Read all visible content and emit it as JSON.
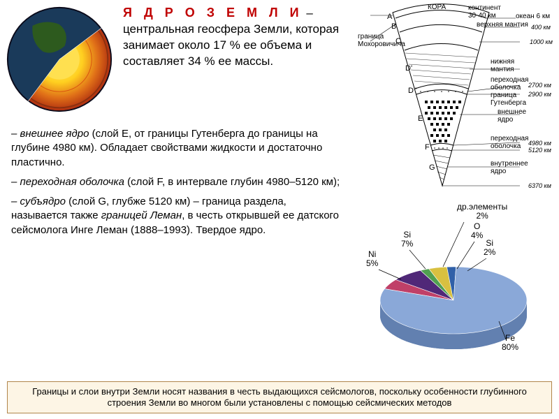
{
  "colors": {
    "title": "#c00000",
    "footer_bg": "#fdf5e5",
    "footer_border": "#b0854a",
    "globe": {
      "space": "#0a0a1a",
      "surface": "#2d5a1e",
      "mantle_out": "#e8b020",
      "mantle_mid": "#e07018",
      "core": "#ffd020"
    }
  },
  "title": "Я Д Р О   З Е М Л И",
  "title_dash": " – ",
  "header_rest": "центральная геосфера Земли, которая занимает около 17 % ее объема и составляет 34 % ее массы.",
  "paragraphs": {
    "p1_em": "– внешнее ядро",
    "p1_rest": " (слой Е, от границы Гутенберга до границы на глубине 4980 км). Обладает свойствами жидкости и достаточно пластично.",
    "p2_em": "– переходная оболочка",
    "p2_rest": " (слой F, в интервале глубин 4980–5120 км);",
    "p3_em": "– субъядро",
    "p3_mid": " (слой G, глубже 5120 км) – граница раздела, называется также ",
    "p3_em2": "границей Леман",
    "p3_rest": ", в честь открывшей ее датского сейсмолога Инге Леман (1888–1993). Твердое ядро."
  },
  "footer": "Границы и слои внутри Земли носят названия в честь выдающихся сейсмологов, поскольку особенности глубинного строения Земли во многом были установлены с помощью сейсмических методов",
  "cone": {
    "labels": {
      "kora": "КОРА",
      "kontinent": "континент\n30-40 км",
      "okean": "океан 6 км",
      "moho": "граница\nМохоровичича",
      "upper_mantle": "верхняя мантия",
      "lower_mantle": "нижняя\nмантия",
      "transition": "переходная\nоболочка",
      "gutenberg": "граница\nГутенберга",
      "outer_core": "внешнее\nядро",
      "trans2": "переходная\nоболочка",
      "inner_core": "внутреннее\nядро"
    },
    "depths": [
      "400 км",
      "1000 км",
      "2700 км",
      "2900 км",
      "4980 км",
      "5120 км",
      "6370 км"
    ],
    "letters": [
      "A",
      "B",
      "C",
      "D'",
      "D''",
      "E",
      "F",
      "G"
    ]
  },
  "pie": {
    "title_other": "др.элементы\n2%",
    "slices": [
      {
        "name": "Fe",
        "label": "Fe\n80%",
        "value": 80,
        "color": "#8aa8d8"
      },
      {
        "name": "Si7",
        "label": "Si\n7%",
        "value": 7,
        "color": "#502878"
      },
      {
        "name": "Ni",
        "label": "Ni\n5%",
        "value": 5,
        "color": "#c04068"
      },
      {
        "name": "O",
        "label": "O\n4%",
        "value": 4,
        "color": "#d8c040"
      },
      {
        "name": "Si2",
        "label": "Si\n2%",
        "value": 2,
        "color": "#3060a8"
      },
      {
        "name": "other",
        "label": "",
        "value": 2,
        "color": "#50a050"
      }
    ]
  }
}
